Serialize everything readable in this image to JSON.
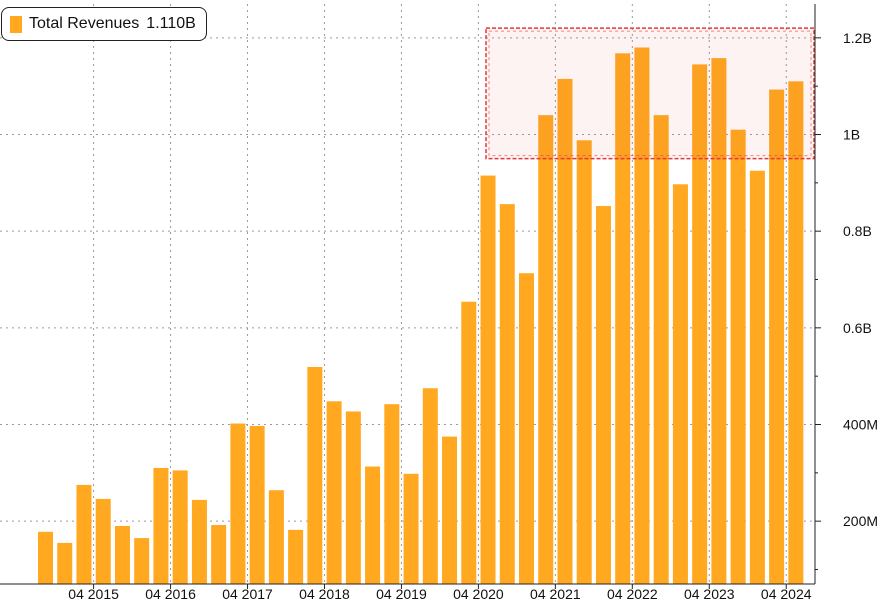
{
  "colors": {
    "bar": "#FFA820",
    "grid": "#9a9a9a",
    "axis": "#222222",
    "highlight": "#E23A3A"
  },
  "legend": {
    "series_label": "Total Revenues",
    "last_value": "1.110B"
  },
  "chart_data": {
    "type": "bar",
    "title": "",
    "xlabel": "",
    "ylabel": "",
    "ylim": [
      70,
      1270
    ],
    "y_axis_side": "right",
    "grid": true,
    "legend_position": "top-left",
    "x_tick_labels": [
      "04 2015",
      "04 2016",
      "04 2017",
      "04 2018",
      "04 2019",
      "04 2020",
      "04 2021",
      "04 2022",
      "04 2023",
      "04 2024"
    ],
    "y_ticks": [
      {
        "value": 200,
        "label": "200M"
      },
      {
        "value": 400,
        "label": "400M"
      },
      {
        "value": 600,
        "label": "0.6B"
      },
      {
        "value": 800,
        "label": "0.8B"
      },
      {
        "value": 1000,
        "label": "1B"
      },
      {
        "value": 1200,
        "label": "1.2B"
      }
    ],
    "series": [
      {
        "name": "Total Revenues",
        "values": [
          178,
          155,
          275,
          246,
          190,
          165,
          310,
          305,
          244,
          192,
          402,
          397,
          264,
          182,
          519,
          448,
          427,
          313,
          442,
          298,
          475,
          375,
          654,
          915,
          856,
          713,
          1040,
          1115,
          988,
          852,
          1168,
          1180,
          1040,
          897,
          1145,
          1158,
          1010,
          925,
          1093,
          1110
        ]
      }
    ],
    "highlight_region": {
      "from_value": 950,
      "to_value": 1220
    }
  }
}
